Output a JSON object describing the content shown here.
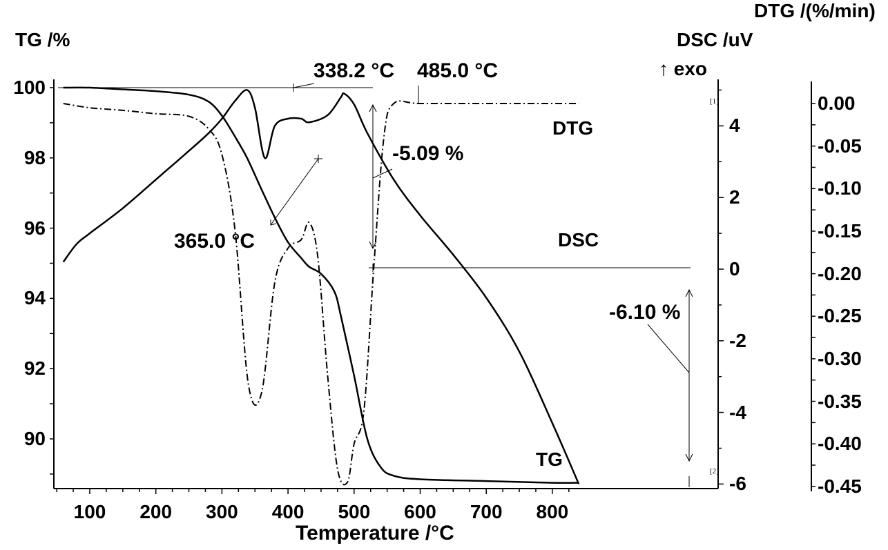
{
  "chart_data": {
    "type": "line",
    "title": "",
    "xlabel": "Temperature /°C",
    "xlim": [
      50,
      845
    ],
    "x_ticks": [
      100,
      200,
      300,
      400,
      500,
      600,
      700,
      800
    ],
    "axes": {
      "left": {
        "label": "TG /%",
        "ticks": [
          100,
          98,
          96,
          94,
          92,
          90
        ],
        "ylim": [
          88.6,
          100.2
        ]
      },
      "middle_right": {
        "label": "DSC /uV",
        "sublabel": "↑ exo",
        "ticks": [
          4,
          2,
          0,
          -2,
          -4,
          -6
        ],
        "ylim": [
          -6.1,
          5.2
        ]
      },
      "far_right": {
        "label": "DTG /(%/min)",
        "ticks": [
          "0.00",
          "-0.05",
          "-0.10",
          "-0.15",
          "-0.20",
          "-0.25",
          "-0.30",
          "-0.35",
          "-0.40",
          "-0.45"
        ],
        "ylim": [
          -0.45,
          0.02
        ]
      }
    },
    "series": [
      {
        "name": "TG",
        "axis": "left",
        "style": "solid",
        "x": [
          60,
          100,
          150,
          200,
          250,
          280,
          300,
          320,
          338,
          360,
          380,
          400,
          420,
          432,
          450,
          470,
          480,
          500,
          520,
          540,
          560,
          600,
          700,
          800,
          840
        ],
        "y": [
          100.0,
          100.0,
          99.95,
          99.9,
          99.8,
          99.6,
          99.2,
          98.6,
          98.0,
          97.1,
          96.3,
          95.6,
          95.15,
          94.9,
          94.7,
          94.2,
          93.5,
          91.8,
          90.0,
          89.2,
          88.95,
          88.85,
          88.8,
          88.75,
          88.75
        ]
      },
      {
        "name": "DSC",
        "axis": "middle_right",
        "style": "solid",
        "x": [
          60,
          80,
          100,
          150,
          200,
          250,
          280,
          300,
          320,
          338.2,
          350,
          365,
          380,
          400,
          420,
          432,
          460,
          480,
          485,
          500,
          520,
          560,
          600,
          650,
          700,
          750,
          800,
          840
        ],
        "y": [
          0.2,
          0.7,
          1.0,
          1.7,
          2.5,
          3.3,
          3.8,
          4.2,
          4.7,
          5.0,
          4.5,
          3.1,
          4.0,
          4.2,
          4.2,
          4.1,
          4.3,
          4.8,
          4.9,
          4.6,
          3.8,
          2.5,
          1.5,
          0.4,
          -0.8,
          -2.3,
          -4.3,
          -6.0
        ]
      },
      {
        "name": "DTG",
        "axis": "far_right",
        "style": "dash-dot",
        "x": [
          60,
          100,
          150,
          200,
          250,
          280,
          300,
          320,
          340,
          360,
          380,
          400,
          420,
          432,
          445,
          460,
          475,
          490,
          500,
          515,
          530,
          545,
          560,
          600,
          700,
          800,
          840
        ],
        "y": [
          0.0,
          -0.005,
          -0.008,
          -0.012,
          -0.015,
          -0.03,
          -0.06,
          -0.15,
          -0.33,
          -0.34,
          -0.21,
          -0.17,
          -0.16,
          -0.14,
          -0.18,
          -0.32,
          -0.43,
          -0.445,
          -0.4,
          -0.36,
          -0.19,
          -0.04,
          0.0,
          0.0,
          0.0,
          0.0,
          0.0
        ]
      }
    ],
    "annotations": [
      {
        "text": "338.2 °C",
        "target": "DSC peak"
      },
      {
        "text": "485.0 °C",
        "target": "DSC peak"
      },
      {
        "text": "365.0 °C",
        "target": "DSC minimum"
      },
      {
        "text": "-5.09 %",
        "target": "TG step 1 mass loss"
      },
      {
        "text": "-6.10 %",
        "target": "TG step 2 mass loss"
      }
    ],
    "curve_labels": [
      "DTG",
      "DSC",
      "TG"
    ],
    "markers": [
      "[1]",
      "[2]"
    ],
    "grid": false,
    "legend_position": "none"
  },
  "labels": {
    "tg_axis_title": "TG /%",
    "dtg_axis_title": "DTG /(%/min)",
    "dsc_axis_title": "DSC /uV",
    "exo": "↑ exo",
    "x_axis_title": "Temperature /°C",
    "ann_3382": "338.2 °C",
    "ann_4850": "485.0 °C",
    "ann_3650": "365.0 °C",
    "ann_509": "-5.09 %",
    "ann_610": "-6.10 %",
    "curve_dtg": "DTG",
    "curve_dsc": "DSC",
    "curve_tg": "TG",
    "marker_1": "[1]",
    "marker_2": "[2]"
  },
  "ticks": {
    "x": [
      "100",
      "200",
      "300",
      "400",
      "500",
      "600",
      "700",
      "800"
    ],
    "left": [
      "100",
      "98",
      "96",
      "94",
      "92",
      "90"
    ],
    "mid": [
      "4",
      "2",
      "0",
      "-2",
      "-4",
      "-6"
    ],
    "right": [
      "0.00",
      "-0.05",
      "-0.10",
      "-0.15",
      "-0.20",
      "-0.25",
      "-0.30",
      "-0.35",
      "-0.40",
      "-0.45"
    ]
  }
}
